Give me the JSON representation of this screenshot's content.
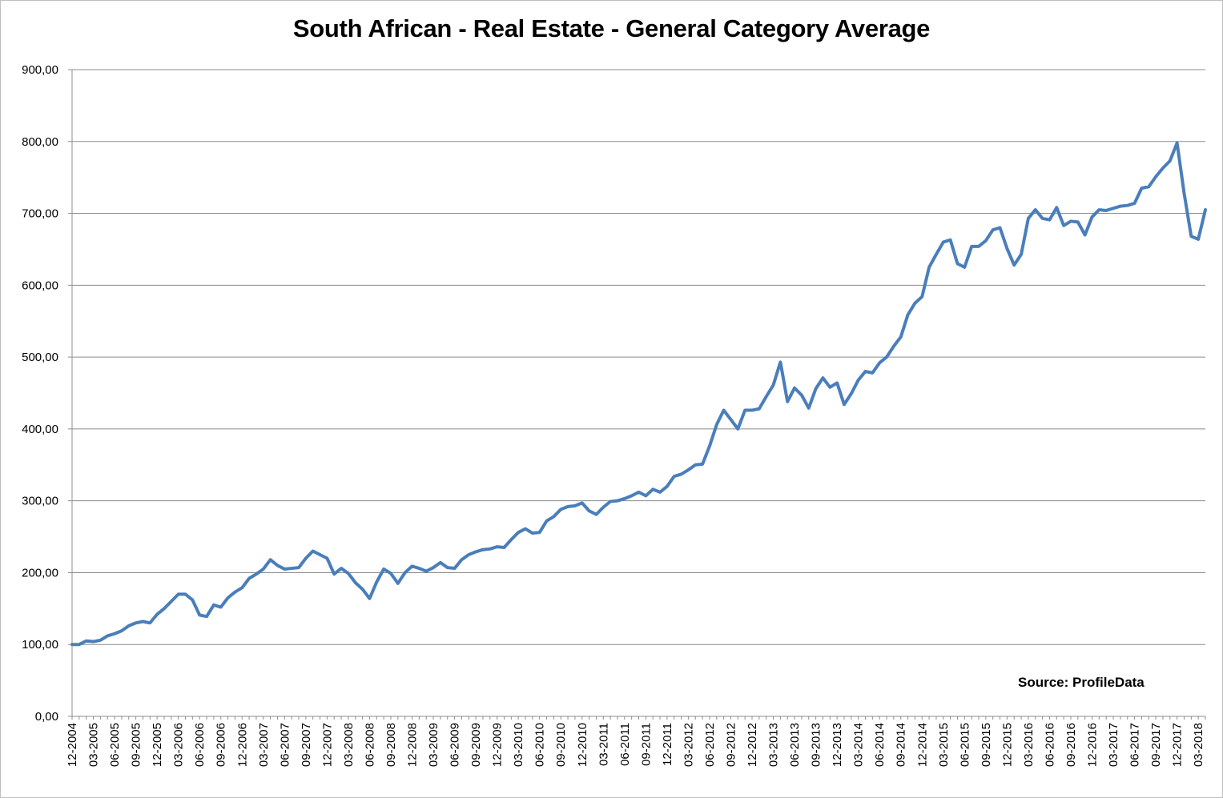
{
  "chart_data": {
    "type": "line",
    "title": "South African - Real Estate - General Category Average",
    "xlabel": "",
    "ylabel": "",
    "ylim": [
      0,
      900
    ],
    "yticks": [
      "0,00",
      "100,00",
      "200,00",
      "300,00",
      "400,00",
      "500,00",
      "600,00",
      "700,00",
      "800,00",
      "900,00"
    ],
    "grid": true,
    "legend": "none",
    "line_color": "#4a7ebb",
    "xtick_labels": [
      "12-2004",
      "03-2005",
      "06-2005",
      "09-2005",
      "12-2005",
      "03-2006",
      "06-2006",
      "09-2006",
      "12-2006",
      "03-2007",
      "06-2007",
      "09-2007",
      "12-2007",
      "03-2008",
      "06-2008",
      "09-2008",
      "12-2008",
      "03-2009",
      "06-2009",
      "09-2009",
      "12-2009",
      "03-2010",
      "06-2010",
      "09-2010",
      "12-2010",
      "03-2011",
      "06-2011",
      "09-2011",
      "12-2011",
      "03-2012",
      "06-2012",
      "09-2012",
      "12-2012",
      "03-2013",
      "06-2013",
      "09-2013",
      "12-2013",
      "03-2014",
      "06-2014",
      "09-2014",
      "12-2014",
      "03-2015",
      "06-2015",
      "09-2015",
      "12-2015",
      "03-2016",
      "06-2016",
      "09-2016",
      "12-2016",
      "03-2017",
      "06-2017",
      "09-2017",
      "12-2017",
      "03-2018"
    ],
    "series": [
      {
        "values": [
          100,
          100,
          105,
          104,
          106,
          112,
          115,
          119,
          126,
          130,
          132,
          130,
          142,
          150,
          160,
          170,
          170,
          162,
          141,
          139,
          155,
          152,
          165,
          173,
          179,
          192,
          198,
          205,
          218,
          210,
          205,
          206,
          207,
          220,
          230,
          225,
          220,
          198,
          206,
          199,
          186,
          177,
          164,
          187,
          205,
          199,
          185,
          200,
          209,
          206,
          202,
          207,
          214,
          207,
          206,
          218,
          225,
          229,
          232,
          233,
          236,
          235,
          246,
          256,
          261,
          255,
          256,
          272,
          278,
          288,
          292,
          293,
          297,
          286,
          281,
          291,
          299,
          300,
          303,
          307,
          312,
          307,
          316,
          312,
          320,
          334,
          337,
          343,
          350,
          351,
          376,
          406,
          426,
          413,
          400,
          426,
          426,
          428,
          445,
          461,
          493,
          438,
          457,
          447,
          429,
          456,
          471,
          458,
          464,
          434,
          449,
          468,
          480,
          478,
          492,
          500,
          515,
          528,
          559,
          575,
          584,
          625,
          643,
          660,
          663,
          630,
          625,
          654,
          654,
          662,
          677,
          680,
          651,
          628,
          643,
          693,
          705,
          693,
          691,
          708,
          683,
          689,
          688,
          670,
          695,
          705,
          704,
          707,
          710,
          711,
          714,
          735,
          737,
          751,
          763,
          773,
          798,
          728,
          668,
          664,
          705
        ]
      }
    ],
    "annotation": "Source: ProfileData"
  }
}
